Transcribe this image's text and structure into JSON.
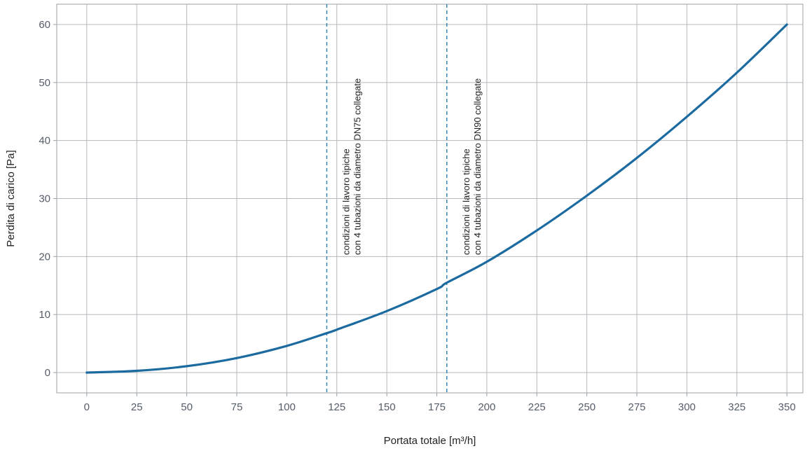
{
  "chart_data": {
    "type": "line",
    "title": "",
    "xlabel": "Portata totale [m³/h]",
    "ylabel": "Perdita di carico [Pa]",
    "xlim": [
      -15,
      358
    ],
    "ylim": [
      -3.5,
      63.5
    ],
    "xticks": [
      0,
      25,
      50,
      75,
      100,
      125,
      150,
      175,
      200,
      225,
      250,
      275,
      300,
      325,
      350
    ],
    "yticks": [
      0,
      10,
      20,
      30,
      40,
      50,
      60
    ],
    "grid": true,
    "series": [
      {
        "color": "#1b6aa0",
        "x": [
          0,
          25,
          50,
          75,
          100,
          120,
          125,
          150,
          175,
          180,
          200,
          225,
          250,
          275,
          300,
          325,
          350
        ],
        "y": [
          0,
          0.3,
          1.1,
          2.5,
          4.6,
          6.8,
          7.4,
          10.6,
          14.4,
          15.5,
          19.1,
          24.5,
          30.5,
          37,
          44.1,
          51.7,
          60
        ]
      }
    ],
    "reference_lines": [
      {
        "x": 120,
        "color": "#2a7fae",
        "style": "dashed",
        "label_line1": "condizioni di lavoro tipiche",
        "label_line2": "con 4 tubazioni da diametro DN75 collegate"
      },
      {
        "x": 180,
        "color": "#2a7fae",
        "style": "dashed",
        "label_line1": "condizioni di lavoro tipiche",
        "label_line2": "con 4 tubazioni da diametro DN90 collegate"
      }
    ]
  }
}
